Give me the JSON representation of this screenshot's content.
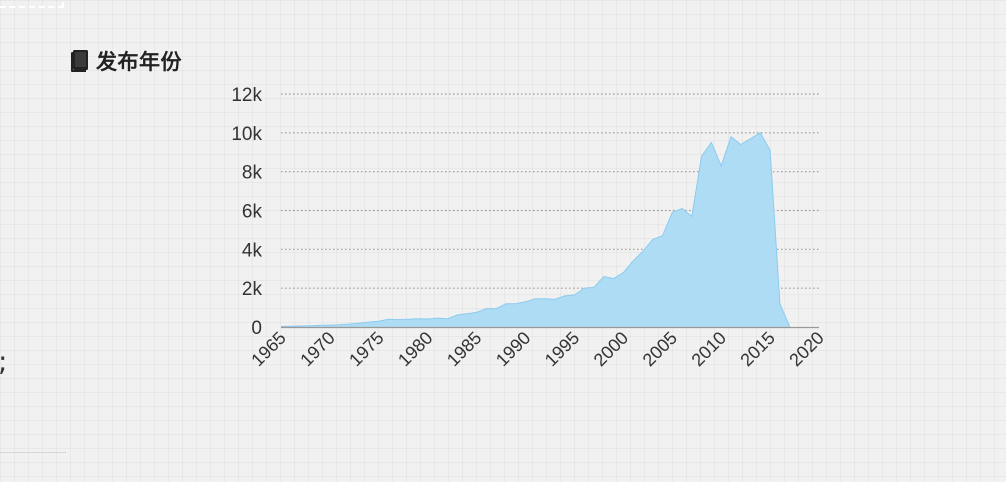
{
  "section": {
    "title": "发布年份",
    "icon": "book-icon"
  },
  "left_panel": {
    "fragment": ";"
  },
  "colors": {
    "area_fill": "#aedcf5",
    "area_stroke": "#8ccbef",
    "grid": "#999999",
    "axis": "#999999",
    "text": "#333333"
  },
  "chart_data": {
    "type": "area",
    "title": "",
    "xlabel": "",
    "ylabel": "",
    "xlim": [
      1965,
      2020
    ],
    "ylim": [
      0,
      12000
    ],
    "x_ticks": [
      1965,
      1970,
      1975,
      1980,
      1985,
      1990,
      1995,
      2000,
      2005,
      2010,
      2015,
      2020
    ],
    "y_ticks": [
      0,
      2000,
      4000,
      6000,
      8000,
      10000,
      12000
    ],
    "y_tick_labels": [
      "0",
      "2k",
      "4k",
      "6k",
      "8k",
      "10k",
      "12k"
    ],
    "grid": true,
    "legend": "none",
    "series": [
      {
        "x": [
          1965,
          1966,
          1967,
          1968,
          1969,
          1970,
          1971,
          1972,
          1973,
          1974,
          1975,
          1976,
          1977,
          1978,
          1979,
          1980,
          1981,
          1982,
          1983,
          1984,
          1985,
          1986,
          1987,
          1988,
          1989,
          1990,
          1991,
          1992,
          1993,
          1994,
          1995,
          1996,
          1997,
          1998,
          1999,
          2000,
          2001,
          2002,
          2003,
          2004,
          2005,
          2006,
          2007,
          2008,
          2009,
          2010,
          2011,
          2012,
          2013,
          2014,
          2015,
          2016,
          2017
        ],
        "values": [
          30,
          40,
          50,
          60,
          80,
          100,
          120,
          150,
          200,
          250,
          300,
          400,
          380,
          400,
          420,
          410,
          460,
          420,
          620,
          680,
          750,
          950,
          950,
          1200,
          1200,
          1300,
          1450,
          1450,
          1420,
          1600,
          1650,
          2000,
          2050,
          2600,
          2500,
          2800,
          3400,
          3900,
          4500,
          4700,
          5900,
          6100,
          5700,
          8800,
          9500,
          8300,
          9800,
          9400,
          9700,
          10000,
          9100,
          1200,
          20
        ]
      }
    ]
  }
}
